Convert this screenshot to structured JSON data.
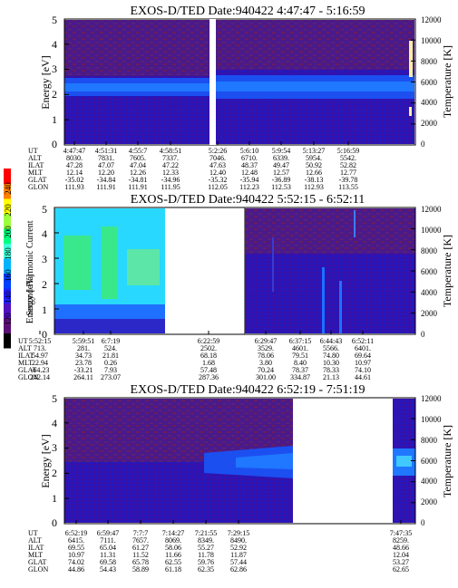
{
  "colorbar": {
    "label": "Second Harmonic Current",
    "ticks": [
      "240",
      "220",
      "200",
      "180",
      "160",
      "140",
      "120",
      "100",
      "80"
    ],
    "colors": [
      "#ff0000",
      "#ff8000",
      "#ffff00",
      "#9cff3c",
      "#00ff80",
      "#40ffd8",
      "#00b4ff",
      "#0040ff",
      "#2020ff",
      "#5010c0",
      "#5b0f75",
      "#000000"
    ]
  },
  "chart_data": [
    {
      "type": "heatmap",
      "title": "EXOS-D/TED   Date:940422   4:47:47 - 5:16:59",
      "ylabel": "Energy [eV]",
      "ylabel2": "Temperature [K]",
      "yticks": [
        "0",
        "1",
        "2",
        "3",
        "4",
        "5"
      ],
      "yticks2": [
        "0",
        "2000",
        "4000",
        "6000",
        "8000",
        "10000",
        "12000"
      ],
      "ylim": [
        0,
        5
      ],
      "ylim2": [
        0,
        12000
      ],
      "eph_labels": [
        "UT",
        "ALT",
        "ILAT",
        "MLT",
        "GLAT",
        "GLON"
      ],
      "eph_columns": [
        [
          "4:47:47",
          "8030.",
          "47.28",
          "12.14",
          "-35.02",
          "111.93"
        ],
        [
          "4:51:31",
          "7831.",
          "47.07",
          "12.20",
          "-34.84",
          "111.91"
        ],
        [
          "4:55:7",
          "7605.",
          "47.04",
          "12.26",
          "-34.81",
          "111.91"
        ],
        [
          "4:58:51",
          "7337.",
          "47.22",
          "12.33",
          "-34.96",
          "111.95"
        ],
        [
          "5:2:26",
          "7046.",
          "47.63",
          "12.40",
          "-35.32",
          "112.05"
        ],
        [
          "5:6:10",
          "6710.",
          "48.37",
          "12.48",
          "-35.94",
          "112.23"
        ],
        [
          "5:9:54",
          "6339.",
          "49.47",
          "12.57",
          "-36.89",
          "112.53"
        ],
        [
          "5:13:27",
          "5954.",
          "50.92",
          "12.66",
          "-38.13",
          "112.93"
        ],
        [
          "5:16:59",
          "5542.",
          "52.82",
          "12.77",
          "-39.78",
          "113.55"
        ]
      ]
    },
    {
      "type": "heatmap",
      "title": "EXOS-D/TED   Date:940422   5:52:15 - 6:52:11",
      "ylabel": "Energy [eV]",
      "ylabel2": "Temperature [K]",
      "yticks": [
        "0",
        "1",
        "2",
        "3",
        "4",
        "5"
      ],
      "yticks2": [
        "0",
        "2000",
        "4000",
        "6000",
        "8000",
        "10000",
        "12000"
      ],
      "ylim": [
        0,
        5
      ],
      "ylim2": [
        0,
        12000
      ],
      "eph_labels": [
        "UT",
        "ALT",
        "ILAT",
        "MLT",
        "GLAT",
        "GLON"
      ],
      "eph_columns": [
        [
          "5:52:15",
          "713.",
          "54.97",
          "22.94",
          "-64.23",
          "242.14"
        ],
        [
          "5:59:51",
          "281.",
          "34.73",
          "23.78",
          "-33.21",
          "264.11"
        ],
        [
          "6:7:19",
          "524.",
          "21.81",
          "0.26",
          "7.93",
          "273.07"
        ],
        [
          "6:22:59",
          "2502.",
          "68.18",
          "1.68",
          "57.48",
          "287.36"
        ],
        [
          "6:29:47",
          "3529.",
          "78.06",
          "3.80",
          "70.24",
          "301.00"
        ],
        [
          "6:37:15",
          "4601.",
          "79.51",
          "8.40",
          "78.37",
          "334.87"
        ],
        [
          "6:44:43",
          "5566.",
          "74.80",
          "10.30",
          "78.33",
          "21.13"
        ],
        [
          "6:52:11",
          "6401.",
          "69.64",
          "10.97",
          "74.10",
          "44.61"
        ]
      ]
    },
    {
      "type": "heatmap",
      "title": "EXOS-D/TED   Date:940422   6:52:19 - 7:51:19",
      "ylabel": "Energy [eV]",
      "ylabel2": "Temperature [K]",
      "yticks": [
        "0",
        "1",
        "2",
        "3",
        "4",
        "5"
      ],
      "yticks2": [
        "0",
        "2000",
        "4000",
        "6000",
        "8000",
        "10000",
        "12000"
      ],
      "ylim": [
        0,
        5
      ],
      "ylim2": [
        0,
        12000
      ],
      "eph_labels": [
        "UT",
        "ALT",
        "ILAT",
        "MLT",
        "GLAT",
        "GLON"
      ],
      "eph_columns": [
        [
          "6:52:19",
          "6415.",
          "69.55",
          "10.97",
          "74.02",
          "44.86"
        ],
        [
          "6:59:47",
          "7111.",
          "65.04",
          "11.31",
          "69.58",
          "54.43"
        ],
        [
          "7:7:7",
          "7657.",
          "61.27",
          "11.52",
          "65.78",
          "58.89"
        ],
        [
          "7:14:27",
          "8069.",
          "58.06",
          "11.66",
          "62.55",
          "61.18"
        ],
        [
          "7:21:55",
          "8349.",
          "55.27",
          "11.78",
          "59.76",
          "62.35"
        ],
        [
          "7:29:15",
          "8490.",
          "52.92",
          "11.87",
          "57.44",
          "62.86"
        ],
        [
          "7:47:35",
          "8259.",
          "48.66",
          "12.04",
          "53.27",
          "62.65"
        ]
      ]
    }
  ]
}
